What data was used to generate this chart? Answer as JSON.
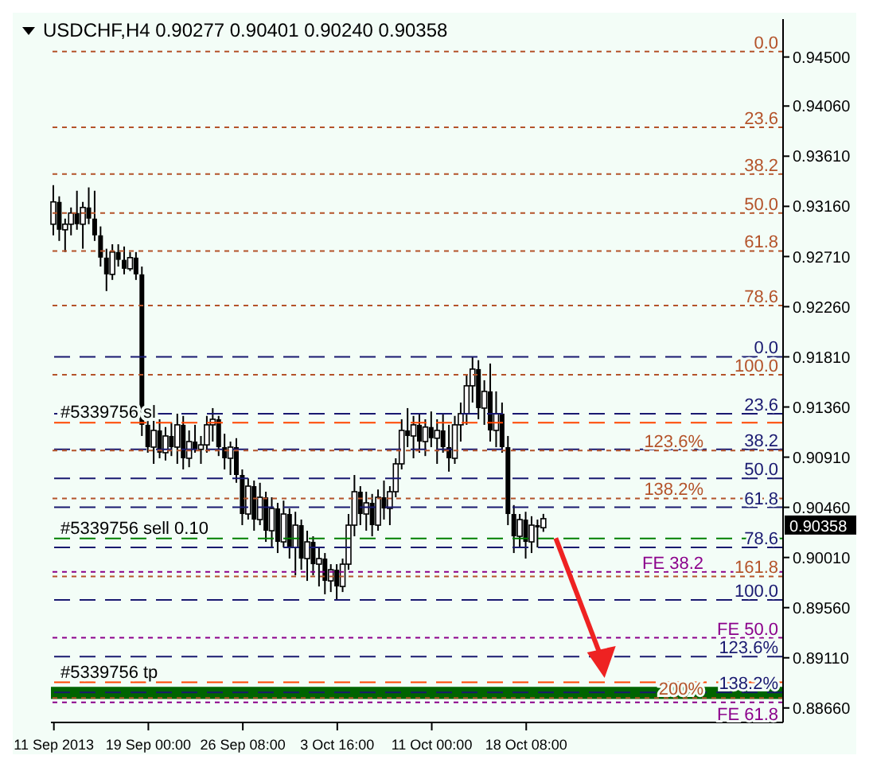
{
  "chart_data": {
    "type": "candlestick",
    "title": "USDCHF,H4 0.90277 0.90401 0.90240 0.90358",
    "categories": [
      "11 Sep 2013",
      null,
      null,
      null,
      null,
      null,
      null,
      null,
      null,
      null,
      null,
      null,
      null,
      null,
      null,
      null,
      "19 Sep 00:00",
      null,
      null,
      null,
      null,
      null,
      null,
      null,
      null,
      null,
      null,
      null,
      null,
      null,
      null,
      null,
      "26 Sep 08:00",
      null,
      null,
      null,
      null,
      null,
      null,
      null,
      null,
      null,
      null,
      null,
      null,
      null,
      null,
      null,
      "3 Oct 16:00",
      null,
      null,
      null,
      null,
      null,
      null,
      null,
      null,
      null,
      null,
      null,
      null,
      null,
      null,
      null,
      "11 Oct 00:00",
      null,
      null,
      null,
      null,
      null,
      null,
      null,
      null,
      null,
      null,
      null,
      null,
      null,
      null,
      null,
      "18 Oct 08:00",
      null,
      null,
      null,
      null,
      null,
      null,
      null,
      null,
      null,
      null,
      null,
      null,
      null,
      null,
      null,
      null,
      null,
      null,
      null,
      null,
      null,
      null,
      null,
      null,
      null,
      null,
      null,
      null,
      null,
      null,
      null,
      null,
      null,
      null,
      null,
      null,
      null,
      null,
      null,
      null,
      null,
      null,
      null
    ],
    "ohlc": [
      [
        0.93,
        0.9335,
        0.929,
        0.932
      ],
      [
        0.932,
        0.9325,
        0.9285,
        0.9295
      ],
      [
        0.9295,
        0.9305,
        0.9275,
        0.93
      ],
      [
        0.93,
        0.9315,
        0.929,
        0.931
      ],
      [
        0.931,
        0.933,
        0.9295,
        0.93
      ],
      [
        0.93,
        0.932,
        0.9278,
        0.9315
      ],
      [
        0.9315,
        0.9333,
        0.93,
        0.9305
      ],
      [
        0.9305,
        0.933,
        0.9285,
        0.929
      ],
      [
        0.929,
        0.9298,
        0.9262,
        0.927
      ],
      [
        0.927,
        0.9278,
        0.924,
        0.9255
      ],
      [
        0.9255,
        0.9282,
        0.925,
        0.9275
      ],
      [
        0.9275,
        0.9282,
        0.9262,
        0.9268
      ],
      [
        0.9268,
        0.928,
        0.9255,
        0.926
      ],
      [
        0.926,
        0.9275,
        0.9258,
        0.927
      ],
      [
        0.927,
        0.9275,
        0.925,
        0.9255
      ],
      [
        0.9255,
        0.9262,
        0.911,
        0.912
      ],
      [
        0.912,
        0.9135,
        0.9095,
        0.91
      ],
      [
        0.91,
        0.9125,
        0.9085,
        0.9115
      ],
      [
        0.9115,
        0.9125,
        0.909,
        0.9095
      ],
      [
        0.9095,
        0.9118,
        0.9088,
        0.911
      ],
      [
        0.911,
        0.9122,
        0.9092,
        0.91
      ],
      [
        0.91,
        0.913,
        0.9085,
        0.912
      ],
      [
        0.912,
        0.9128,
        0.908,
        0.909
      ],
      [
        0.909,
        0.9115,
        0.9082,
        0.9105
      ],
      [
        0.9105,
        0.912,
        0.9095,
        0.9098
      ],
      [
        0.9098,
        0.911,
        0.9085,
        0.9102
      ],
      [
        0.9102,
        0.9128,
        0.9095,
        0.912
      ],
      [
        0.912,
        0.9135,
        0.9105,
        0.9125
      ],
      [
        0.9125,
        0.9128,
        0.9092,
        0.91
      ],
      [
        0.91,
        0.9112,
        0.908,
        0.909
      ],
      [
        0.909,
        0.9105,
        0.9075,
        0.91
      ],
      [
        0.91,
        0.9108,
        0.9068,
        0.9075
      ],
      [
        0.9075,
        0.908,
        0.903,
        0.904
      ],
      [
        0.904,
        0.9072,
        0.9035,
        0.9065
      ],
      [
        0.9065,
        0.907,
        0.9025,
        0.9035
      ],
      [
        0.9035,
        0.9068,
        0.903,
        0.9055
      ],
      [
        0.9055,
        0.906,
        0.9015,
        0.9025
      ],
      [
        0.9025,
        0.9055,
        0.901,
        0.9045
      ],
      [
        0.9045,
        0.905,
        0.9005,
        0.9015
      ],
      [
        0.9015,
        0.9052,
        0.901,
        0.904
      ],
      [
        0.904,
        0.9045,
        0.9,
        0.901
      ],
      [
        0.901,
        0.9042,
        0.8985,
        0.903
      ],
      [
        0.903,
        0.9035,
        0.899,
        0.9
      ],
      [
        0.9,
        0.9025,
        0.898,
        0.9015
      ],
      [
        0.9015,
        0.902,
        0.8985,
        0.8995
      ],
      [
        0.8995,
        0.901,
        0.8975,
        0.9
      ],
      [
        0.9,
        0.9005,
        0.8968,
        0.898
      ],
      [
        0.898,
        0.8995,
        0.897,
        0.899
      ],
      [
        0.899,
        0.8995,
        0.8963,
        0.8975
      ],
      [
        0.8975,
        0.9,
        0.897,
        0.8995
      ],
      [
        0.8995,
        0.904,
        0.899,
        0.903
      ],
      [
        0.903,
        0.9075,
        0.902,
        0.906
      ],
      [
        0.906,
        0.9065,
        0.903,
        0.904
      ],
      [
        0.904,
        0.906,
        0.9025,
        0.905
      ],
      [
        0.905,
        0.9058,
        0.902,
        0.903
      ],
      [
        0.903,
        0.9062,
        0.9025,
        0.9055
      ],
      [
        0.9055,
        0.907,
        0.9035,
        0.9045
      ],
      [
        0.9045,
        0.9065,
        0.903,
        0.906
      ],
      [
        0.906,
        0.909,
        0.9055,
        0.9085
      ],
      [
        0.9085,
        0.9125,
        0.908,
        0.9115
      ],
      [
        0.9115,
        0.9135,
        0.91,
        0.911
      ],
      [
        0.911,
        0.9128,
        0.909,
        0.912
      ],
      [
        0.912,
        0.913,
        0.9095,
        0.9105
      ],
      [
        0.9105,
        0.9125,
        0.9092,
        0.9118
      ],
      [
        0.9118,
        0.9132,
        0.91,
        0.9108
      ],
      [
        0.9108,
        0.9125,
        0.9085,
        0.9115
      ],
      [
        0.9115,
        0.913,
        0.9095,
        0.91
      ],
      [
        0.91,
        0.912,
        0.9078,
        0.909
      ],
      [
        0.909,
        0.9128,
        0.9085,
        0.912
      ],
      [
        0.912,
        0.914,
        0.9105,
        0.913
      ],
      [
        0.913,
        0.9165,
        0.912,
        0.9155
      ],
      [
        0.9155,
        0.9181,
        0.914,
        0.917
      ],
      [
        0.917,
        0.9178,
        0.9125,
        0.9135
      ],
      [
        0.9135,
        0.916,
        0.912,
        0.915
      ],
      [
        0.915,
        0.9175,
        0.9105,
        0.9115
      ],
      [
        0.9115,
        0.915,
        0.91,
        0.913
      ],
      [
        0.913,
        0.914,
        0.9095,
        0.91
      ],
      [
        0.91,
        0.911,
        0.903,
        0.904
      ],
      [
        0.904,
        0.9048,
        0.9005,
        0.902
      ],
      [
        0.902,
        0.904,
        0.901,
        0.9035
      ],
      [
        0.9035,
        0.9042,
        0.9,
        0.9015
      ],
      [
        0.9015,
        0.9038,
        0.9005,
        0.903
      ],
      [
        0.903,
        0.9035,
        0.901,
        0.9028
      ],
      [
        0.90277,
        0.90401,
        0.9024,
        0.90358
      ],
      null,
      null,
      null,
      null,
      null,
      null,
      null,
      null,
      null,
      null,
      null,
      null,
      null,
      null,
      null,
      null,
      null,
      null,
      null,
      null,
      null,
      null,
      null,
      null,
      null,
      null,
      null,
      null,
      null,
      null,
      null,
      null,
      null,
      null,
      null,
      null,
      null,
      null,
      null,
      null
    ],
    "value_labels": [
      null,
      null,
      null,
      null,
      null,
      null,
      null,
      null,
      null,
      null,
      null,
      null,
      null,
      null,
      null,
      null,
      null,
      null,
      null,
      null,
      null,
      null,
      null,
      null,
      null,
      null,
      null,
      null,
      null,
      null,
      null,
      null,
      null,
      null,
      null,
      null,
      null,
      null,
      null,
      null,
      null,
      null,
      null,
      null,
      null,
      null,
      null,
      null,
      null,
      null,
      null,
      null,
      null,
      null,
      null,
      null,
      null,
      null,
      null,
      null,
      null,
      null,
      null,
      null,
      null,
      null,
      null,
      null,
      null,
      null,
      null,
      null,
      null,
      null,
      null,
      null,
      null,
      null,
      null,
      null,
      null,
      null,
      null,
      "0.90358",
      null,
      null,
      null,
      null,
      null,
      null,
      null,
      null,
      null,
      null,
      null,
      null,
      null,
      null,
      null,
      null,
      null,
      null,
      null,
      null,
      null,
      null,
      null,
      null,
      null,
      null,
      null,
      null,
      null,
      null,
      null,
      null,
      null,
      null,
      null,
      null,
      null,
      null,
      null,
      null
    ],
    "color": "#000000",
    "ylim": [
      0.8853,
      0.9484
    ],
    "yticks": [
      {
        "value": 0.945,
        "label": "0.94500"
      },
      {
        "value": 0.9406,
        "label": "0.94060"
      },
      {
        "value": 0.9361,
        "label": "0.93610"
      },
      {
        "value": 0.9316,
        "label": "0.93160"
      },
      {
        "value": 0.9271,
        "label": "0.92710"
      },
      {
        "value": 0.9226,
        "label": "0.92260"
      },
      {
        "value": 0.9181,
        "label": "0.91810"
      },
      {
        "value": 0.9136,
        "label": "0.91360"
      },
      {
        "value": 0.9091,
        "label": "0.90910"
      },
      {
        "value": 0.9046,
        "label": "0.90460"
      },
      {
        "value": 0.9001,
        "label": "0.90010"
      },
      {
        "value": 0.8956,
        "label": "0.89560"
      },
      {
        "value": 0.8911,
        "label": "0.89110"
      },
      {
        "value": 0.8866,
        "label": "0.88660"
      }
    ],
    "grid": false,
    "legend": false,
    "ref_lines": [
      {
        "axis": "y",
        "value": 0.9122,
        "label": "#5339756 sl",
        "color": "#ff4500",
        "line_style": "dashed"
      },
      {
        "axis": "y",
        "value": 0.9018,
        "label": "#5339756 sell 0.10",
        "color": "#008000",
        "line_style": "dashed"
      },
      {
        "axis": "y",
        "value": 0.8889,
        "label": "#5339756 tp",
        "color": "#ff4500",
        "line_style": "dashed"
      },
      {
        "axis": "y",
        "value": 0.9181,
        "color": "#191970",
        "line_style": "dashed"
      },
      {
        "axis": "y",
        "value": 0.913,
        "color": "#191970",
        "line_style": "dashed"
      },
      {
        "axis": "y",
        "value": 0.9098,
        "color": "#191970",
        "line_style": "dashed"
      },
      {
        "axis": "y",
        "value": 0.9072,
        "color": "#191970",
        "line_style": "dashed"
      },
      {
        "axis": "y",
        "value": 0.9046,
        "color": "#191970",
        "line_style": "dashed"
      },
      {
        "axis": "y",
        "value": 0.901,
        "color": "#191970",
        "line_style": "dashed"
      },
      {
        "axis": "y",
        "value": 0.8963,
        "color": "#191970",
        "line_style": "dashed"
      },
      {
        "axis": "y",
        "value": 0.8912,
        "color": "#191970",
        "line_style": "dashed"
      },
      {
        "axis": "y",
        "value": 0.888,
        "color": "#191970",
        "line_style": "dashed"
      },
      {
        "axis": "y",
        "value": 0.9455,
        "color": "#b4532a",
        "line_style": "dotted"
      },
      {
        "axis": "y",
        "value": 0.9387,
        "color": "#b4532a",
        "line_style": "dotted"
      },
      {
        "axis": "y",
        "value": 0.9345,
        "color": "#b4532a",
        "line_style": "dotted"
      },
      {
        "axis": "y",
        "value": 0.931,
        "color": "#b4532a",
        "line_style": "dotted"
      },
      {
        "axis": "y",
        "value": 0.9276,
        "color": "#b4532a",
        "line_style": "dotted"
      },
      {
        "axis": "y",
        "value": 0.9227,
        "color": "#b4532a",
        "line_style": "dotted"
      },
      {
        "axis": "y",
        "value": 0.9165,
        "color": "#b4532a",
        "line_style": "dotted"
      },
      {
        "axis": "y",
        "value": 0.9097,
        "color": "#b4532a",
        "line_style": "dotted"
      },
      {
        "axis": "y",
        "value": 0.9054,
        "color": "#b4532a",
        "line_style": "dotted"
      },
      {
        "axis": "y",
        "value": 0.8984,
        "color": "#b4532a",
        "line_style": "dotted"
      },
      {
        "axis": "y",
        "value": 0.8875,
        "color": "#b4532a",
        "line_style": "dotted"
      },
      {
        "axis": "y",
        "value": 0.8988,
        "color": "#8b008b",
        "line_style": "dotted"
      },
      {
        "axis": "y",
        "value": 0.8929,
        "color": "#8b008b",
        "line_style": "dotted"
      },
      {
        "axis": "y",
        "value": 0.8871,
        "color": "#8b008b",
        "line_style": "dotted"
      }
    ],
    "bands": [
      {
        "axis": "y",
        "from": 0.8874,
        "to": 0.8885,
        "color": "#006400"
      }
    ],
    "annotations": [
      {
        "text": "0.0",
        "y": 0.9181
      },
      {
        "text": "23.6",
        "y": 0.913
      },
      {
        "text": "38.2",
        "y": 0.9098
      },
      {
        "text": "50.0",
        "y": 0.9072
      },
      {
        "text": "61.8",
        "y": 0.9046
      },
      {
        "text": "78.6",
        "y": 0.901
      },
      {
        "text": "100.0",
        "y": 0.8963
      },
      {
        "text": "123.6%",
        "y": 0.8912
      },
      {
        "text": "138.2%",
        "y": 0.888
      },
      {
        "text": "0.0",
        "y": 0.9455
      },
      {
        "text": "23.6",
        "y": 0.9387
      },
      {
        "text": "38.2",
        "y": 0.9345
      },
      {
        "text": "50.0",
        "y": 0.931
      },
      {
        "text": "61.8",
        "y": 0.9276
      },
      {
        "text": "78.6",
        "y": 0.9227
      },
      {
        "text": "100.0",
        "y": 0.9165
      },
      {
        "text": "123.6%",
        "y": 0.9097
      },
      {
        "text": "138.2%",
        "y": 0.9054
      },
      {
        "text": "161.8",
        "y": 0.8984
      },
      {
        "text": "200%",
        "y": 0.8875
      },
      {
        "text": "FE 38.2",
        "y": 0.8988
      },
      {
        "text": "FE 50.0",
        "y": 0.8929
      },
      {
        "text": "FE 61.8",
        "y": 0.8871
      }
    ]
  }
}
